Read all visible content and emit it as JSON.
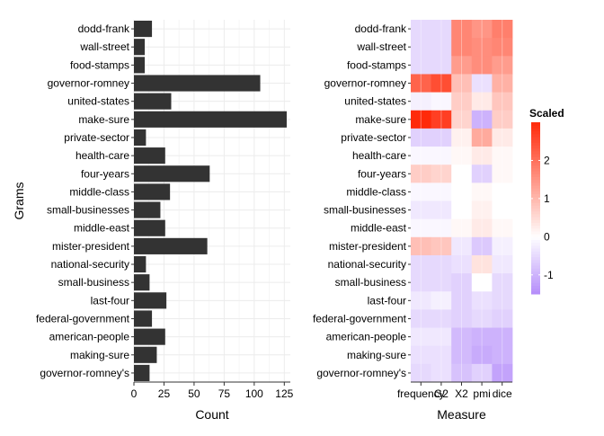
{
  "chart_data": [
    {
      "type": "bar",
      "orientation": "horizontal",
      "xlabel": "Count",
      "ylabel": "Grams",
      "xlim": [
        0,
        130
      ],
      "xticks": [
        0,
        25,
        50,
        75,
        100,
        125
      ],
      "grid": true,
      "categories": [
        "dodd-frank",
        "wall-street",
        "food-stamps",
        "governor-romney",
        "united-states",
        "make-sure",
        "private-sector",
        "health-care",
        "four-years",
        "middle-class",
        "small-businesses",
        "middle-east",
        "mister-president",
        "national-security",
        "small-business",
        "last-four",
        "federal-government",
        "american-people",
        "making-sure",
        "governor-romney's"
      ],
      "values": [
        15,
        9,
        9,
        105,
        31,
        127,
        10,
        26,
        63,
        30,
        22,
        26,
        61,
        10,
        13,
        27,
        15,
        26,
        19,
        13
      ],
      "bar_color": "#333333"
    },
    {
      "type": "heatmap",
      "xlabel": "Measure",
      "ylabel": "",
      "columns": [
        "frequency",
        "G2",
        "X2",
        "pmi",
        "dice"
      ],
      "column_tick_labels": [
        "frequency",
        "G2",
        "X2",
        "pmi",
        "dice"
      ],
      "rows": [
        "dodd-frank",
        "wall-street",
        "food-stamps",
        "governor-romney",
        "united-states",
        "make-sure",
        "private-sector",
        "health-care",
        "four-years",
        "middle-class",
        "small-businesses",
        "middle-east",
        "mister-president",
        "national-security",
        "small-business",
        "last-four",
        "federal-government",
        "american-people",
        "making-sure",
        "governor-romney's"
      ],
      "values": [
        [
          -0.5,
          -0.5,
          1.7,
          1.5,
          1.8
        ],
        [
          -0.5,
          -0.5,
          1.7,
          1.6,
          1.7
        ],
        [
          -0.5,
          -0.5,
          1.4,
          1.6,
          1.4
        ],
        [
          2.2,
          2.5,
          0.9,
          -0.4,
          1.1
        ],
        [
          -0.2,
          -0.1,
          0.7,
          0.3,
          0.8
        ],
        [
          3.0,
          2.7,
          0.6,
          -1.0,
          0.7
        ],
        [
          -0.6,
          -0.6,
          0.2,
          1.2,
          0.3
        ],
        [
          -0.1,
          -0.1,
          0.1,
          0.3,
          0.1
        ],
        [
          0.7,
          0.6,
          0.0,
          -0.6,
          0.1
        ],
        [
          -0.1,
          -0.1,
          0.0,
          0.1,
          0.0
        ],
        [
          -0.3,
          -0.3,
          0.0,
          0.2,
          0.0
        ],
        [
          -0.1,
          -0.1,
          0.1,
          0.3,
          0.1
        ],
        [
          0.9,
          0.8,
          -0.3,
          -0.7,
          -0.2
        ],
        [
          -0.5,
          -0.5,
          -0.4,
          0.4,
          -0.3
        ],
        [
          -0.5,
          -0.5,
          -0.6,
          0.0,
          -0.5
        ],
        [
          -0.3,
          -0.2,
          -0.6,
          -0.4,
          -0.5
        ],
        [
          -0.5,
          -0.5,
          -0.6,
          -0.5,
          -0.6
        ],
        [
          -0.3,
          -0.3,
          -0.9,
          -1.0,
          -1.0
        ],
        [
          -0.4,
          -0.4,
          -0.9,
          -1.1,
          -1.0
        ],
        [
          -0.5,
          -0.4,
          -0.8,
          -0.6,
          -1.2
        ]
      ],
      "colorbar": {
        "title": "Scaled",
        "min": -1.5,
        "max": 3.0,
        "ticks": [
          -1,
          0,
          1,
          2
        ],
        "low_color": "#b48cfa",
        "mid_color": "#ffffff",
        "high_color": "#ff2a0a"
      }
    }
  ]
}
